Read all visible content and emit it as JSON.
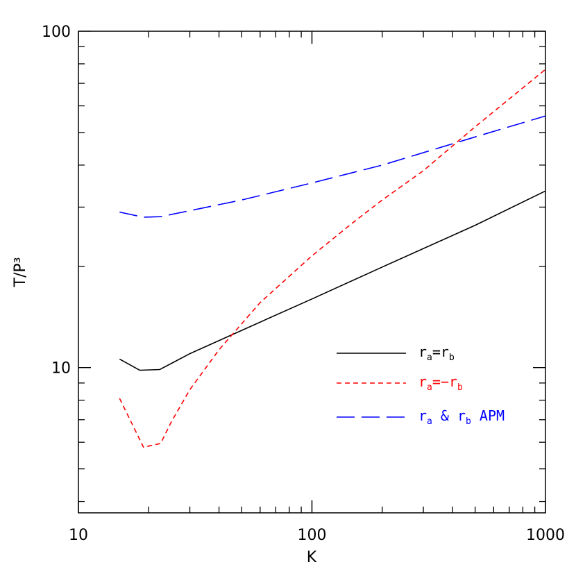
{
  "chart_data": {
    "type": "line",
    "title": "",
    "xlabel": "K",
    "ylabel": "T/P³",
    "xscale": "log",
    "yscale": "log",
    "xlim": [
      10,
      1000
    ],
    "ylim": [
      3.7,
      100
    ],
    "x_ticks": [
      "10",
      "100",
      "1000"
    ],
    "y_ticks": [
      "10",
      "100"
    ],
    "legend_position": "lower-right",
    "series": [
      {
        "color": "#000000",
        "dash": "solid",
        "legend": {
          "main": "r",
          "sub1": "a",
          "mid": "=r",
          "sub2": "b",
          "tail": ""
        },
        "x": [
          15,
          18.3,
          22.3,
          30,
          50,
          100,
          200,
          500,
          1000
        ],
        "y": [
          10.6,
          9.82,
          9.87,
          11.0,
          12.9,
          16.0,
          19.9,
          26.5,
          33.5
        ]
      },
      {
        "color": "#ff0000",
        "dash": "short",
        "legend": {
          "main": "r",
          "sub1": "a",
          "mid": "=−r",
          "sub2": "b",
          "tail": ""
        },
        "x": [
          15,
          19,
          22.5,
          25,
          30,
          40,
          60,
          100,
          150,
          200,
          300,
          500,
          1000
        ],
        "y": [
          8.1,
          5.8,
          5.95,
          6.9,
          8.6,
          11.3,
          15.6,
          21.5,
          27.0,
          31.5,
          38.5,
          52.0,
          77.0
        ]
      },
      {
        "color": "#0000ff",
        "dash": "long",
        "legend": {
          "main": "r",
          "sub1": "a",
          "mid": " & r",
          "sub2": "b",
          "tail": " APM"
        },
        "x": [
          15,
          19,
          22.5,
          50,
          100,
          200,
          500,
          1000
        ],
        "y": [
          29.0,
          28.0,
          28.1,
          31.5,
          35.4,
          40.0,
          48.5,
          56.0
        ]
      }
    ]
  }
}
